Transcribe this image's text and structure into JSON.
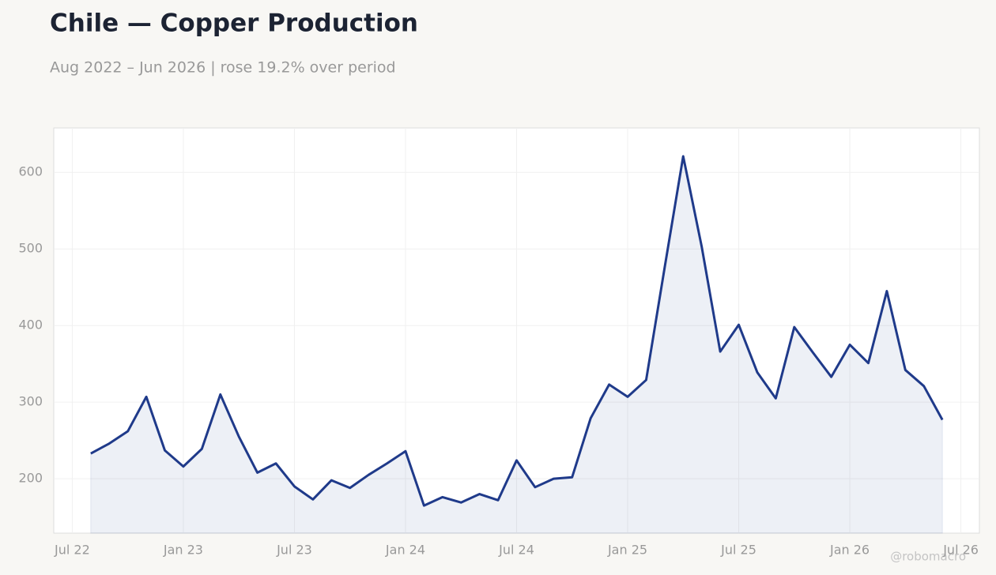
{
  "chart_data": {
    "type": "line",
    "title": "Chile — Copper Production",
    "subtitle": "Aug 2022 – Jun 2026 | rose 19.2% over period",
    "watermark": "@robomacro",
    "x": [
      "2022-08",
      "2022-09",
      "2022-10",
      "2022-11",
      "2022-12",
      "2023-01",
      "2023-02",
      "2023-03",
      "2023-04",
      "2023-05",
      "2023-06",
      "2023-07",
      "2023-08",
      "2023-09",
      "2023-10",
      "2023-11",
      "2023-12",
      "2024-01",
      "2024-02",
      "2024-03",
      "2024-04",
      "2024-05",
      "2024-06",
      "2024-07",
      "2024-08",
      "2024-09",
      "2024-10",
      "2024-11",
      "2024-12",
      "2025-01",
      "2025-02",
      "2025-03",
      "2025-04",
      "2025-05",
      "2025-06",
      "2025-07",
      "2025-08",
      "2025-09",
      "2025-10",
      "2025-11",
      "2025-12",
      "2026-01",
      "2026-02",
      "2026-03",
      "2026-04",
      "2026-05",
      "2026-06"
    ],
    "series": [
      {
        "name": "Copper Production",
        "color": "#1f3a8a",
        "values": [
          233,
          246,
          262,
          307,
          237,
          216,
          239,
          310,
          255,
          208,
          220,
          190,
          173,
          198,
          188,
          205,
          220,
          236,
          165,
          176,
          169,
          180,
          172,
          224,
          189,
          200,
          202,
          279,
          323,
          307,
          329,
          476,
          621,
          503,
          366,
          401,
          339,
          305,
          398,
          365,
          333,
          375,
          351,
          445,
          342,
          321,
          277
        ]
      }
    ],
    "xlim": [
      "2022-06",
      "2026-08"
    ],
    "xticks": [
      {
        "value": "2022-07",
        "label": "Jul 22"
      },
      {
        "value": "2023-01",
        "label": "Jan 23"
      },
      {
        "value": "2023-07",
        "label": "Jul 23"
      },
      {
        "value": "2024-01",
        "label": "Jan 24"
      },
      {
        "value": "2024-07",
        "label": "Jul 24"
      },
      {
        "value": "2025-01",
        "label": "Jan 25"
      },
      {
        "value": "2025-07",
        "label": "Jul 25"
      },
      {
        "value": "2026-01",
        "label": "Jan 26"
      },
      {
        "value": "2026-07",
        "label": "Jul 26"
      }
    ],
    "ylim": [
      129,
      658
    ],
    "yticks": [
      200,
      300,
      400,
      500,
      600
    ],
    "grid": true,
    "area": true
  }
}
